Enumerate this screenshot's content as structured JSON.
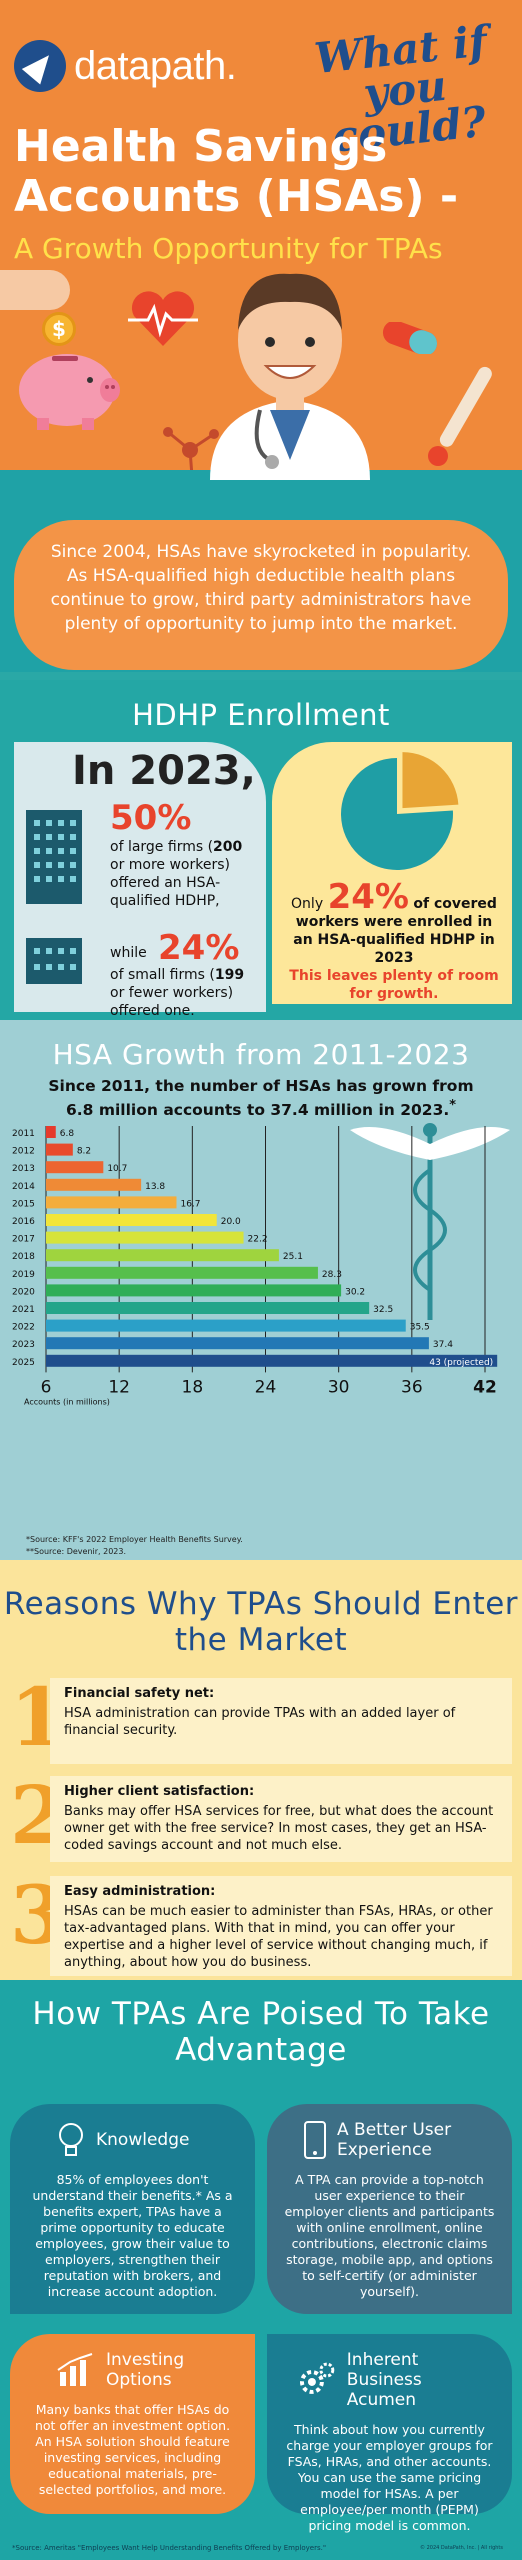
{
  "header": {
    "logo_text": "datapath.",
    "tagline": "What if you could?",
    "title": "Health Savings Accounts (HSAs) -",
    "subtitle": "A Growth Opportunity for TPAs",
    "coin_symbol": "$",
    "intro": "Since 2004, HSAs have skyrocketed in popularity. As HSA-qualified high deductible health plans continue to grow, third party administrators have plenty of opportunity to jump into the market."
  },
  "hdhp": {
    "heading": "HDHP Enrollment",
    "in_year": "In 2023,",
    "large_pct": "50%",
    "large_text_a": "of large firms (",
    "large_num": "200",
    "large_text_b": "or more workers) offered an HSA-qualified HDHP,",
    "small_while": "while",
    "small_pct": "24%",
    "small_text_a": "of small firms (",
    "small_num": "199",
    "small_text_b": "or fewer workers) offered one.",
    "only": "Only",
    "covered_pct": "24%",
    "covered_text_a": "of covered workers were enrolled in an HSA-qualified HDHP in",
    "covered_year": "2023",
    "covered_red": "This leaves plenty of room for growth.",
    "pie_share": 0.24,
    "colors": {
      "red": "#e8442c",
      "teal_pie": "#1f9ea5",
      "gold_pie": "#e8a535"
    }
  },
  "growth": {
    "heading": "HSA Growth from 2011-2023",
    "subheading": "Since 2011, the number of HSAs has grown from 6.8 million accounts to 37.4 million in 2023.",
    "subheading_mark": "*",
    "sources_1": "*Source: KFF's 2022 Employer Health Benefits Survey.",
    "sources_2": "**Source: Devenir, 2023."
  },
  "chart_data": {
    "type": "bar",
    "orientation": "horizontal",
    "categories": [
      "2011",
      "2012",
      "2013",
      "2014",
      "2015",
      "2016",
      "2017",
      "2018",
      "2019",
      "2020",
      "2021",
      "2022",
      "2023",
      "2025"
    ],
    "values": [
      6.8,
      8.2,
      10.7,
      13.8,
      16.7,
      20.0,
      22.2,
      25.1,
      28.3,
      30.2,
      32.5,
      35.5,
      37.4,
      43
    ],
    "data_labels": [
      "6.8",
      "8.2",
      "10.7",
      "13.8",
      "16.7",
      "20.0",
      "22.2",
      "25.1",
      "28.3",
      "30.2",
      "32.5",
      "35.5",
      "37.4",
      "43 (projected)"
    ],
    "bar_colors": [
      "#e63a2c",
      "#e84b2c",
      "#ec6530",
      "#ef8a36",
      "#f4ad3c",
      "#f2e53a",
      "#d6e33a",
      "#9fd43e",
      "#56bf4c",
      "#2fae57",
      "#23a58a",
      "#2ba0c8",
      "#2378b5",
      "#1f4e8c"
    ],
    "xticks": [
      "6",
      "12",
      "18",
      "24",
      "30",
      "36",
      "42"
    ],
    "xlabel": "Accounts (in millions)",
    "xlim": [
      6,
      42
    ],
    "grid": true
  },
  "reasons": {
    "heading": "Reasons Why TPAs Should Enter the Market",
    "items": [
      {
        "num": "1",
        "title": "Financial safety net:",
        "desc": "HSA administration can provide TPAs with an added layer of financial security."
      },
      {
        "num": "2",
        "title": "Higher client satisfaction:",
        "desc": "Banks may offer HSA services for free, but what does the account owner get with the free service? In most cases, they get an HSA-coded savings account and not much else."
      },
      {
        "num": "3",
        "title": "Easy administration:",
        "desc": "HSAs can be much easier to administer than FSAs, HRAs, or other tax-advantaged plans. With that in mind, you can offer your expertise and a higher level of service without changing much, if anything, about how you do business."
      }
    ]
  },
  "poised": {
    "heading": "How TPAs Are Poised To Take Advantage",
    "cards": [
      {
        "title": "Knowledge",
        "desc": "85% of employees don't understand their benefits.* As a benefits expert, TPAs have a prime opportunity to educate employees, grow their value to employers, strengthen their reputation with brokers, and increase account adoption."
      },
      {
        "title": "A Better User Experience",
        "desc": "A TPA can provide a top-notch user experience to their employer clients and participants with online enrollment, online contributions, electronic claims storage, mobile app, and options to self-certify (or administer yourself)."
      },
      {
        "title": "Investing Options",
        "desc": "Many banks that offer HSAs do not offer an investment option. An HSA solution should feature investing services, including educational materials, pre-selected portfolios, and more."
      },
      {
        "title": "Inherent Business Acumen",
        "desc": "Think about how you currently charge your employer groups for FSAs, HRAs, and other accounts. You can use the same pricing model for HSAs. A per employee/per month (PEPM) pricing model is common."
      }
    ],
    "footnote": "*Source: Ameritas \"Employees Want Help Understanding Benefits Offered by Employers.\"",
    "copyright": "© 2024 DataPath, Inc. | All rights"
  }
}
